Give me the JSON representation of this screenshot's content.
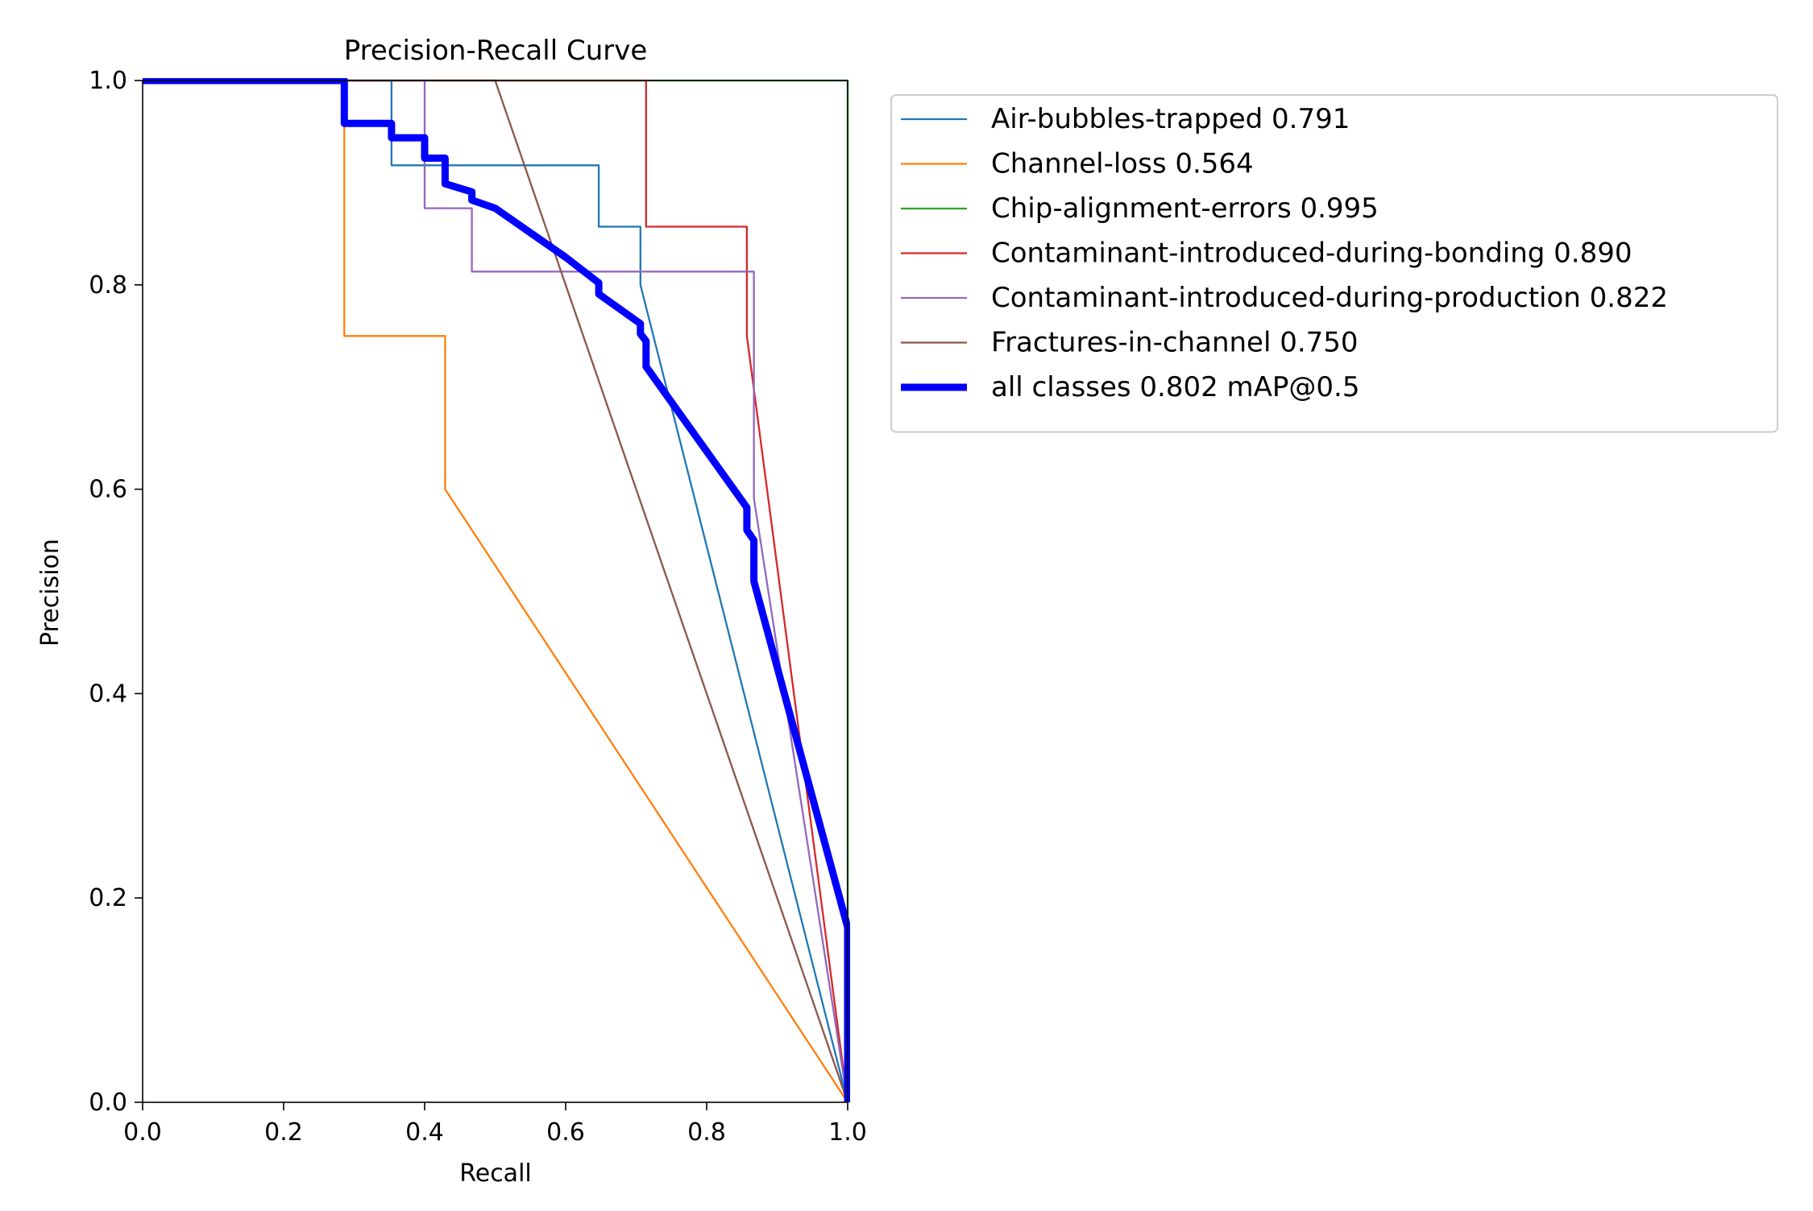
{
  "chart_data": {
    "type": "line",
    "title": "Precision-Recall Curve",
    "xlabel": "Recall",
    "ylabel": "Precision",
    "xlim": [
      0,
      1
    ],
    "ylim": [
      0,
      1
    ],
    "xticks": [
      0.0,
      0.2,
      0.4,
      0.6,
      0.8,
      1.0
    ],
    "yticks": [
      0.0,
      0.2,
      0.4,
      0.6,
      0.8,
      1.0
    ],
    "xtick_labels": [
      "0.0",
      "0.2",
      "0.4",
      "0.6",
      "0.8",
      "1.0"
    ],
    "ytick_labels": [
      "0.0",
      "0.2",
      "0.4",
      "0.6",
      "0.8",
      "1.0"
    ],
    "grid": false,
    "legend_position": "outside-upper-right",
    "series": [
      {
        "name": "Air-bubbles-trapped 0.791",
        "color": "#1f77b4",
        "emphasis": false,
        "points": [
          [
            0,
            1.0
          ],
          [
            0.353,
            1.0
          ],
          [
            0.353,
            0.917
          ],
          [
            0.647,
            0.917
          ],
          [
            0.647,
            0.857
          ],
          [
            0.706,
            0.857
          ],
          [
            0.706,
            0.8
          ],
          [
            1.0,
            0.0
          ]
        ]
      },
      {
        "name": "Channel-loss 0.564",
        "color": "#ff7f0e",
        "emphasis": false,
        "points": [
          [
            0,
            1.0
          ],
          [
            0.286,
            1.0
          ],
          [
            0.286,
            0.75
          ],
          [
            0.429,
            0.75
          ],
          [
            0.429,
            0.6
          ],
          [
            1.0,
            0.0
          ]
        ]
      },
      {
        "name": "Chip-alignment-errors 0.995",
        "color": "#2ca02c",
        "emphasis": false,
        "points": [
          [
            0,
            1.0
          ],
          [
            1.0,
            1.0
          ],
          [
            1.0,
            0.0
          ]
        ]
      },
      {
        "name": "Contaminant-introduced-during-bonding 0.890",
        "color": "#d62728",
        "emphasis": false,
        "points": [
          [
            0,
            1.0
          ],
          [
            0.714,
            1.0
          ],
          [
            0.714,
            0.857
          ],
          [
            0.857,
            0.857
          ],
          [
            0.857,
            0.75
          ],
          [
            1.0,
            0.0
          ]
        ]
      },
      {
        "name": "Contaminant-introduced-during-production 0.822",
        "color": "#9467bd",
        "emphasis": false,
        "points": [
          [
            0,
            1.0
          ],
          [
            0.4,
            1.0
          ],
          [
            0.4,
            0.875
          ],
          [
            0.467,
            0.875
          ],
          [
            0.467,
            0.813
          ],
          [
            0.867,
            0.813
          ],
          [
            0.867,
            0.591
          ],
          [
            1.0,
            0.0
          ]
        ]
      },
      {
        "name": "Fractures-in-channel 0.750",
        "color": "#8c564b",
        "emphasis": false,
        "points": [
          [
            0,
            1.0
          ],
          [
            0.5,
            1.0
          ],
          [
            1.0,
            0.0
          ]
        ]
      },
      {
        "name": "all classes 0.802 mAP@0.5",
        "color": "#0000ff",
        "emphasis": true,
        "points": [
          [
            0,
            1.0
          ],
          [
            0.286,
            1.0
          ],
          [
            0.286,
            0.958
          ],
          [
            0.353,
            0.958
          ],
          [
            0.353,
            0.944
          ],
          [
            0.4,
            0.944
          ],
          [
            0.4,
            0.924
          ],
          [
            0.429,
            0.924
          ],
          [
            0.429,
            0.899
          ],
          [
            0.467,
            0.891
          ],
          [
            0.467,
            0.883
          ],
          [
            0.5,
            0.875
          ],
          [
            0.6,
            0.827
          ],
          [
            0.647,
            0.802
          ],
          [
            0.647,
            0.791
          ],
          [
            0.706,
            0.762
          ],
          [
            0.706,
            0.752
          ],
          [
            0.714,
            0.745
          ],
          [
            0.714,
            0.72
          ],
          [
            0.857,
            0.582
          ],
          [
            0.857,
            0.56
          ],
          [
            0.867,
            0.55
          ],
          [
            0.867,
            0.51
          ],
          [
            1.0,
            0.171
          ],
          [
            1.0,
            0.0
          ]
        ]
      }
    ]
  }
}
